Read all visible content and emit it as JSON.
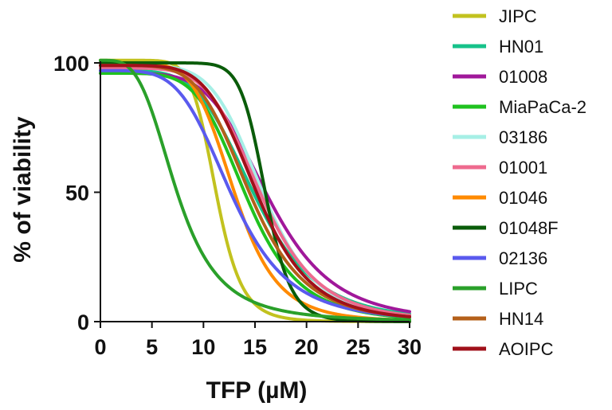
{
  "chart_data": {
    "type": "line",
    "xlabel": "TFP (µM)",
    "ylabel": "% of viability",
    "xlim": [
      0,
      30
    ],
    "ylim": [
      0,
      100
    ],
    "xticks": [
      0,
      5,
      10,
      15,
      20,
      25,
      30
    ],
    "yticks": [
      0,
      50,
      100
    ],
    "grid": false,
    "legend_position": "right",
    "series": [
      {
        "name": "JIPC",
        "color": "#c2c21f",
        "top": 101,
        "ic50": 11.2,
        "hill": 9.0
      },
      {
        "name": "HN01",
        "color": "#16c28a",
        "top": 97,
        "ic50": 15.0,
        "hill": 5.0
      },
      {
        "name": "01008",
        "color": "#a0189a",
        "top": 96,
        "ic50": 16.3,
        "hill": 5.2
      },
      {
        "name": "MiaPaCa-2",
        "color": "#1fc21f",
        "top": 96,
        "ic50": 14.2,
        "hill": 5.5
      },
      {
        "name": "03186",
        "color": "#a6efe6",
        "top": 99,
        "ic50": 15.8,
        "hill": 6.0
      },
      {
        "name": "01001",
        "color": "#ee6a8e",
        "top": 98,
        "ic50": 15.6,
        "hill": 5.6
      },
      {
        "name": "01046",
        "color": "#ff8a00",
        "top": 100,
        "ic50": 13.0,
        "hill": 6.2
      },
      {
        "name": "01048F",
        "color": "#0a5c0a",
        "top": 100,
        "ic50": 16.0,
        "hill": 13.0
      },
      {
        "name": "02136",
        "color": "#5a5aee",
        "top": 97,
        "ic50": 12.8,
        "hill": 4.6
      },
      {
        "name": "LIPC",
        "color": "#2aa02a",
        "top": 101,
        "ic50": 7.4,
        "hill": 3.6
      },
      {
        "name": "HN14",
        "color": "#b4601a",
        "top": 99,
        "ic50": 14.5,
        "hill": 5.4
      },
      {
        "name": "AOIPC",
        "color": "#a0101a",
        "top": 99,
        "ic50": 15.2,
        "hill": 5.8
      }
    ]
  }
}
